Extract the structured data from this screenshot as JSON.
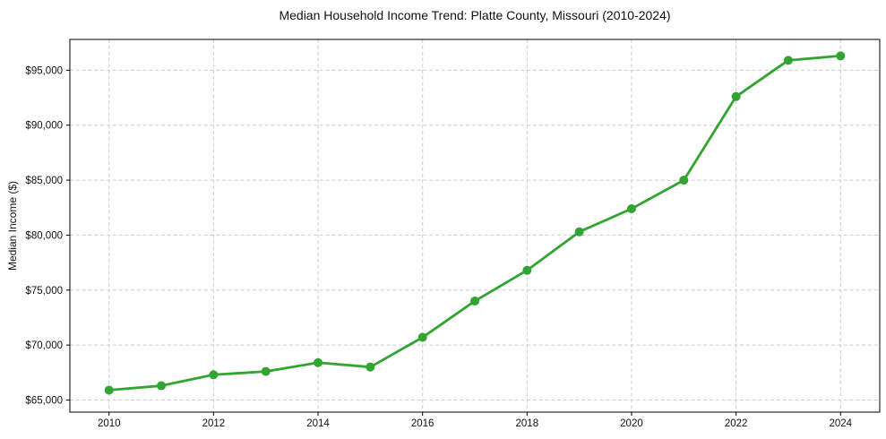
{
  "chart_data": {
    "type": "line",
    "title": "Median Household Income Trend: Platte County, Missouri (2010-2024)",
    "ylabel": "Median Income ($)",
    "xlabel": "",
    "series": [
      {
        "name": "Median household income",
        "x": [
          2010,
          2011,
          2012,
          2013,
          2014,
          2015,
          2016,
          2017,
          2018,
          2019,
          2020,
          2021,
          2022,
          2023,
          2024
        ],
        "values": [
          65900,
          66300,
          67300,
          67600,
          68400,
          68000,
          70700,
          74000,
          76800,
          80300,
          82400,
          85000,
          92600,
          95900,
          96300
        ]
      }
    ],
    "x_ticks": [
      2010,
      2012,
      2014,
      2016,
      2018,
      2020,
      2022,
      2024
    ],
    "x_tick_labels": [
      "2010",
      "2012",
      "2014",
      "2016",
      "2018",
      "2020",
      "2022",
      "2024"
    ],
    "y_ticks": [
      65000,
      70000,
      75000,
      80000,
      85000,
      90000,
      95000
    ],
    "y_tick_labels": [
      "$65,000",
      "$70,000",
      "$75,000",
      "$80,000",
      "$85,000",
      "$90,000",
      "$95,000"
    ],
    "xlim": [
      2009.25,
      2024.75
    ],
    "ylim": [
      63900,
      97800
    ],
    "grid": true,
    "legend": false,
    "marker": "circle",
    "colors": {
      "line": "#31a431",
      "grid": "#cccccc",
      "axis": "#000000",
      "text": "#111111",
      "background": "#ffffff"
    }
  }
}
